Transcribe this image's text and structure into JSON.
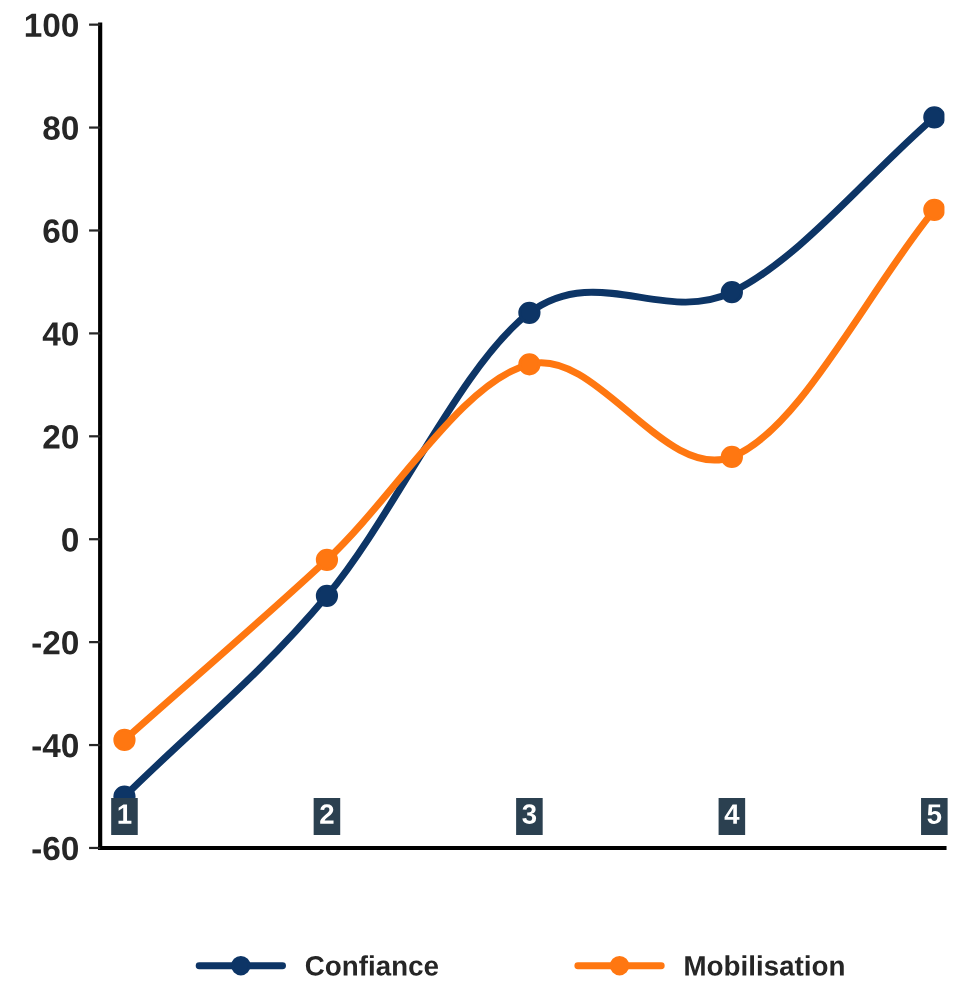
{
  "chart_data": {
    "type": "line",
    "categories": [
      "1",
      "2",
      "3",
      "4",
      "5"
    ],
    "series": [
      {
        "name": "Confiance",
        "color": "#0d3566",
        "values": [
          -50,
          -11,
          44,
          48,
          82
        ]
      },
      {
        "name": "Mobilisation",
        "color": "#ff7711",
        "values": [
          -39,
          -4,
          34,
          16,
          64
        ]
      }
    ],
    "ylim": [
      -60,
      100
    ],
    "yticks": [
      -60,
      -40,
      -20,
      0,
      20,
      40,
      60,
      80,
      100
    ],
    "grid": false,
    "legend": "bottom",
    "marker": "circle",
    "line_style": "solid"
  }
}
